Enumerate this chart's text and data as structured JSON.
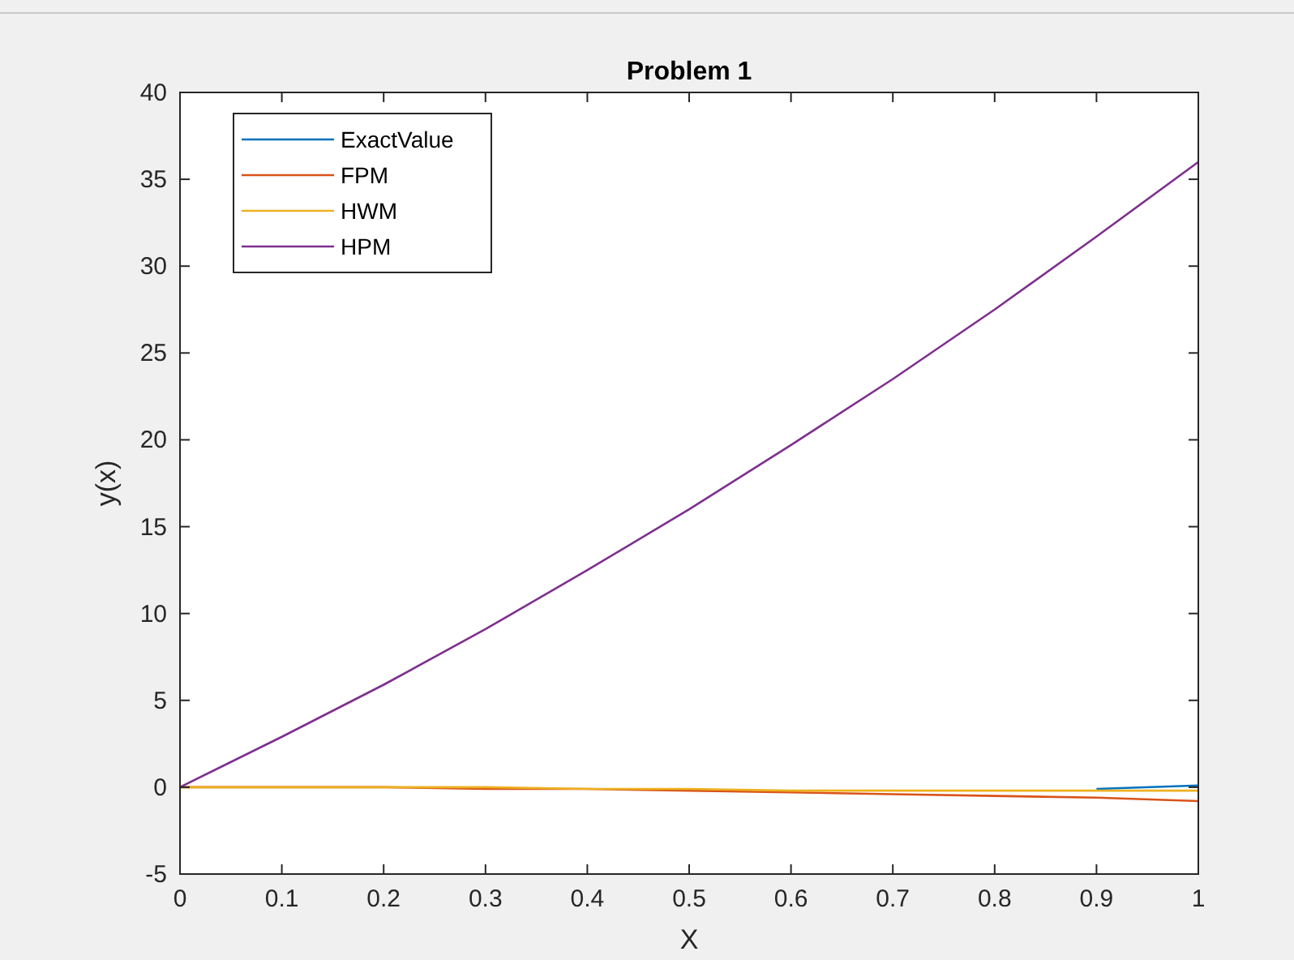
{
  "chart_data": {
    "type": "line",
    "title": "Problem 1",
    "xlabel": "X",
    "ylabel": "y(x)",
    "x": [
      0,
      0.1,
      0.2,
      0.3,
      0.4,
      0.5,
      0.6,
      0.7,
      0.8,
      0.9,
      1
    ],
    "series": [
      {
        "name": "ExactValue",
        "color": "#0072bd",
        "values": [
          null,
          null,
          null,
          null,
          null,
          null,
          null,
          null,
          null,
          -0.1,
          0.1
        ]
      },
      {
        "name": "FPM",
        "color": "#d95319",
        "values": [
          0,
          0,
          0,
          -0.1,
          -0.1,
          -0.2,
          -0.3,
          -0.4,
          -0.5,
          -0.6,
          -0.8
        ]
      },
      {
        "name": "HWM",
        "color": "#edb120",
        "values": [
          0,
          0,
          0,
          0,
          -0.1,
          -0.1,
          -0.2,
          -0.2,
          -0.2,
          -0.2,
          -0.2
        ]
      },
      {
        "name": "HPM",
        "color": "#7e2f8e",
        "values": [
          0,
          2.9,
          5.9,
          9.1,
          12.5,
          16,
          19.7,
          23.5,
          27.5,
          31.7,
          36
        ]
      }
    ],
    "xlim": [
      0,
      1
    ],
    "xticks": [
      0,
      0.1,
      0.2,
      0.3,
      0.4,
      0.5,
      0.6,
      0.7,
      0.8,
      0.9,
      1
    ],
    "ylim": [
      -5,
      40
    ],
    "yticks": [
      -5,
      0,
      5,
      10,
      15,
      20,
      25,
      30,
      35,
      40
    ],
    "grid": false,
    "legend": "top left",
    "marker": "none",
    "line_style": "solid"
  }
}
